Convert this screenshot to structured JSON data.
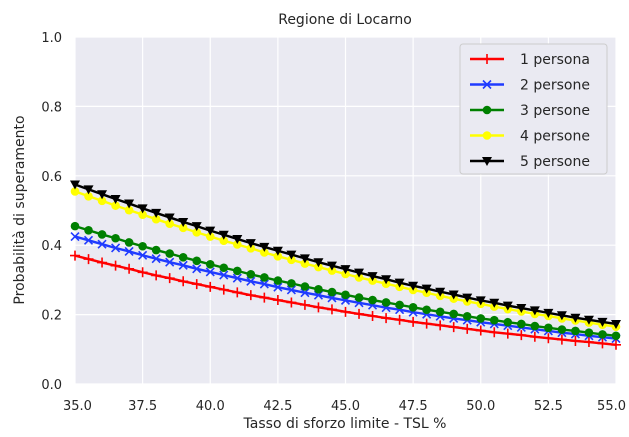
{
  "chart_data": {
    "type": "line",
    "title": "Regione di Locarno",
    "xlabel": "Tasso di sforzo limite - TSL %",
    "ylabel": "Probabilità di superamento",
    "xlim": [
      35.0,
      55.0
    ],
    "ylim": [
      0.0,
      1.0
    ],
    "xticks": [
      "35.0",
      "37.5",
      "40.0",
      "42.5",
      "45.0",
      "47.5",
      "50.0",
      "52.5",
      "55.0"
    ],
    "yticks": [
      "0.0",
      "0.2",
      "0.4",
      "0.6",
      "0.8",
      "1.0"
    ],
    "grid": true,
    "legend_position": "top-right",
    "x_start": 35.0,
    "x_step": 0.5,
    "series": [
      {
        "name": "1 persona",
        "color": "#ff0000",
        "marker": "plus",
        "values": [
          0.37,
          0.36,
          0.35,
          0.341,
          0.332,
          0.322,
          0.313,
          0.305,
          0.296,
          0.288,
          0.28,
          0.272,
          0.264,
          0.256,
          0.249,
          0.242,
          0.235,
          0.228,
          0.221,
          0.215,
          0.208,
          0.202,
          0.196,
          0.19,
          0.185,
          0.179,
          0.174,
          0.169,
          0.164,
          0.159,
          0.154,
          0.149,
          0.145,
          0.141,
          0.136,
          0.132,
          0.128,
          0.124,
          0.121,
          0.117,
          0.113
        ]
      },
      {
        "name": "2 persone",
        "color": "#1f3bff",
        "marker": "x",
        "values": [
          0.425,
          0.414,
          0.403,
          0.392,
          0.382,
          0.371,
          0.361,
          0.351,
          0.342,
          0.332,
          0.323,
          0.314,
          0.305,
          0.296,
          0.288,
          0.279,
          0.271,
          0.263,
          0.256,
          0.248,
          0.241,
          0.234,
          0.227,
          0.22,
          0.214,
          0.207,
          0.201,
          0.195,
          0.189,
          0.184,
          0.178,
          0.173,
          0.168,
          0.163,
          0.158,
          0.153,
          0.148,
          0.144,
          0.139,
          0.135,
          0.131
        ]
      },
      {
        "name": "3 persone",
        "color": "#008000",
        "marker": "circle",
        "values": [
          0.455,
          0.443,
          0.431,
          0.42,
          0.408,
          0.397,
          0.386,
          0.376,
          0.365,
          0.355,
          0.345,
          0.335,
          0.326,
          0.316,
          0.307,
          0.298,
          0.29,
          0.281,
          0.273,
          0.265,
          0.257,
          0.249,
          0.242,
          0.235,
          0.228,
          0.221,
          0.214,
          0.208,
          0.202,
          0.195,
          0.189,
          0.184,
          0.178,
          0.173,
          0.167,
          0.162,
          0.157,
          0.153,
          0.148,
          0.143,
          0.139
        ]
      },
      {
        "name": "4 persone",
        "color": "#ffff00",
        "marker": "circle",
        "values": [
          0.555,
          0.541,
          0.528,
          0.514,
          0.501,
          0.488,
          0.475,
          0.462,
          0.45,
          0.437,
          0.425,
          0.413,
          0.402,
          0.391,
          0.379,
          0.368,
          0.358,
          0.347,
          0.337,
          0.327,
          0.317,
          0.307,
          0.298,
          0.289,
          0.28,
          0.271,
          0.263,
          0.254,
          0.246,
          0.238,
          0.231,
          0.223,
          0.216,
          0.209,
          0.202,
          0.196,
          0.189,
          0.183,
          0.177,
          0.171,
          0.165
        ]
      },
      {
        "name": "5 persone",
        "color": "#000000",
        "marker": "triangle-down",
        "values": [
          0.575,
          0.561,
          0.547,
          0.533,
          0.52,
          0.506,
          0.493,
          0.48,
          0.467,
          0.455,
          0.442,
          0.43,
          0.418,
          0.406,
          0.395,
          0.384,
          0.373,
          0.362,
          0.351,
          0.341,
          0.331,
          0.321,
          0.311,
          0.302,
          0.292,
          0.283,
          0.275,
          0.266,
          0.258,
          0.249,
          0.241,
          0.234,
          0.226,
          0.219,
          0.212,
          0.205,
          0.198,
          0.191,
          0.185,
          0.179,
          0.173
        ]
      }
    ]
  }
}
